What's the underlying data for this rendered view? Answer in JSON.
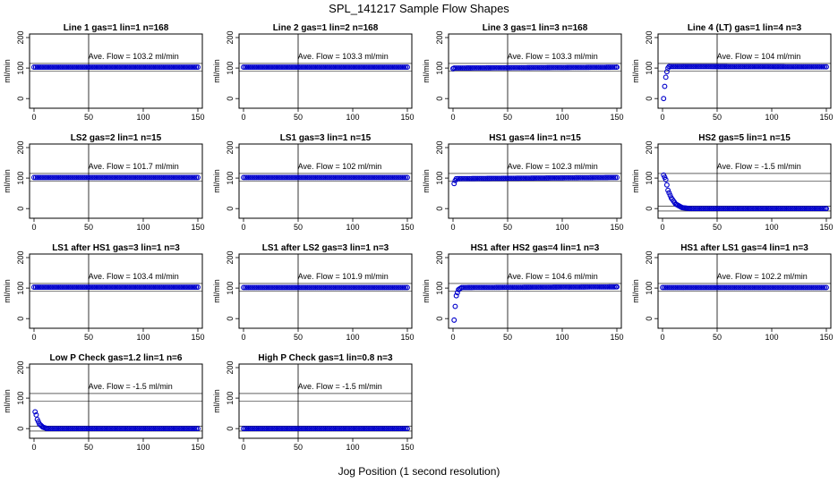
{
  "figure": {
    "title": "SPL_141217  Sample Flow Shapes",
    "xlabel": "Jog Position (1 second resolution)"
  },
  "colors": {
    "points": "#0000cc",
    "axes": "#000000",
    "refline": "#000000"
  },
  "chart_data": [
    {
      "type": "scatter",
      "title": "Line 1 gas=1 lin=1 n=168",
      "ylabel": "ml/min",
      "annotation": "Ave. Flow =  103.2  ml/min",
      "xlim": [
        0,
        150
      ],
      "ylim": [
        -20,
        200
      ],
      "xticks": [
        0,
        50,
        100,
        150
      ],
      "yticks": [
        0,
        100,
        200
      ],
      "shape": "flat",
      "level": 103,
      "points": [
        [
          0,
          103
        ],
        [
          150,
          103
        ]
      ]
    },
    {
      "type": "scatter",
      "title": "Line 2 gas=1 lin=2 n=168",
      "ylabel": "ml/min",
      "annotation": "Ave. Flow =  103.3  ml/min",
      "xlim": [
        0,
        150
      ],
      "ylim": [
        -20,
        200
      ],
      "xticks": [
        0,
        50,
        100,
        150
      ],
      "yticks": [
        0,
        100,
        200
      ],
      "shape": "flat",
      "level": 103,
      "points": [
        [
          0,
          103
        ],
        [
          150,
          103
        ]
      ]
    },
    {
      "type": "scatter",
      "title": "Line 3 gas=1 lin=3 n=168",
      "ylabel": "ml/min",
      "annotation": "Ave. Flow =  103.3  ml/min",
      "xlim": [
        0,
        150
      ],
      "ylim": [
        -20,
        200
      ],
      "xticks": [
        0,
        50,
        100,
        150
      ],
      "yticks": [
        0,
        100,
        200
      ],
      "shape": "flat",
      "level": 103,
      "points": [
        [
          0,
          98
        ],
        [
          1,
          100
        ],
        [
          150,
          103
        ]
      ]
    },
    {
      "type": "scatter",
      "title": "Line 4 (LT) gas=1 lin=4 n=3",
      "ylabel": "ml/min",
      "annotation": "Ave. Flow =  104  ml/min",
      "xlim": [
        0,
        150
      ],
      "ylim": [
        -20,
        200
      ],
      "xticks": [
        0,
        50,
        100,
        150
      ],
      "yticks": [
        0,
        100,
        200
      ],
      "shape": "rise",
      "level": 104,
      "points": [
        [
          1,
          0
        ],
        [
          2,
          40
        ],
        [
          3,
          70
        ],
        [
          4,
          88
        ],
        [
          5,
          100
        ],
        [
          6,
          105
        ],
        [
          150,
          104
        ]
      ]
    },
    {
      "type": "scatter",
      "title": "LS2 gas=2 lin=1 n=15",
      "ylabel": "ml/min",
      "annotation": "Ave. Flow =  101.7  ml/min",
      "xlim": [
        0,
        150
      ],
      "ylim": [
        -20,
        200
      ],
      "xticks": [
        0,
        50,
        100,
        150
      ],
      "yticks": [
        0,
        100,
        200
      ],
      "shape": "flat",
      "level": 102,
      "points": [
        [
          0,
          102
        ],
        [
          150,
          102
        ]
      ]
    },
    {
      "type": "scatter",
      "title": "LS1 gas=3 lin=1 n=15",
      "ylabel": "ml/min",
      "annotation": "Ave. Flow =  102  ml/min",
      "xlim": [
        0,
        150
      ],
      "ylim": [
        -20,
        200
      ],
      "xticks": [
        0,
        50,
        100,
        150
      ],
      "yticks": [
        0,
        100,
        200
      ],
      "shape": "flat",
      "level": 102,
      "points": [
        [
          0,
          102
        ],
        [
          150,
          102
        ]
      ]
    },
    {
      "type": "scatter",
      "title": "HS1 gas=4 lin=1 n=15",
      "ylabel": "ml/min",
      "annotation": "Ave. Flow =  102.3  ml/min",
      "xlim": [
        0,
        150
      ],
      "ylim": [
        -20,
        200
      ],
      "xticks": [
        0,
        50,
        100,
        150
      ],
      "yticks": [
        0,
        100,
        200
      ],
      "shape": "rise",
      "level": 102,
      "points": [
        [
          1,
          82
        ],
        [
          2,
          92
        ],
        [
          3,
          98
        ],
        [
          150,
          102
        ]
      ]
    },
    {
      "type": "scatter",
      "title": "HS2 gas=5 lin=1 n=15",
      "ylabel": "ml/min",
      "annotation": "Ave. Flow =  -1.5  ml/min",
      "xlim": [
        0,
        150
      ],
      "ylim": [
        -20,
        200
      ],
      "xticks": [
        0,
        50,
        100,
        150
      ],
      "yticks": [
        0,
        100,
        200
      ],
      "shape": "decay",
      "level": 0,
      "points": [
        [
          1,
          110
        ],
        [
          3,
          95
        ],
        [
          5,
          60
        ],
        [
          8,
          35
        ],
        [
          12,
          15
        ],
        [
          18,
          3
        ],
        [
          25,
          0
        ],
        [
          150,
          0
        ]
      ]
    },
    {
      "type": "scatter",
      "title": "LS1 after HS1 gas=3 lin=1 n=3",
      "ylabel": "ml/min",
      "annotation": "Ave. Flow =  103.4  ml/min",
      "xlim": [
        0,
        150
      ],
      "ylim": [
        -20,
        200
      ],
      "xticks": [
        0,
        50,
        100,
        150
      ],
      "yticks": [
        0,
        100,
        200
      ],
      "shape": "flat",
      "level": 103,
      "points": [
        [
          0,
          103
        ],
        [
          150,
          103
        ]
      ]
    },
    {
      "type": "scatter",
      "title": "LS1 after LS2 gas=3 lin=1 n=3",
      "ylabel": "ml/min",
      "annotation": "Ave. Flow =  101.9  ml/min",
      "xlim": [
        0,
        150
      ],
      "ylim": [
        -20,
        200
      ],
      "xticks": [
        0,
        50,
        100,
        150
      ],
      "yticks": [
        0,
        100,
        200
      ],
      "shape": "flat",
      "level": 102,
      "points": [
        [
          0,
          102
        ],
        [
          150,
          102
        ]
      ]
    },
    {
      "type": "scatter",
      "title": "HS1 after HS2 gas=4 lin=1 n=3",
      "ylabel": "ml/min",
      "annotation": "Ave. Flow =  104.6  ml/min",
      "xlim": [
        0,
        150
      ],
      "ylim": [
        -20,
        200
      ],
      "xticks": [
        0,
        50,
        100,
        150
      ],
      "yticks": [
        0,
        100,
        200
      ],
      "shape": "rise",
      "level": 104,
      "points": [
        [
          1,
          -5
        ],
        [
          2,
          40
        ],
        [
          3,
          75
        ],
        [
          5,
          95
        ],
        [
          8,
          102
        ],
        [
          150,
          104
        ]
      ]
    },
    {
      "type": "scatter",
      "title": "HS1 after LS1 gas=4 lin=1 n=3",
      "ylabel": "ml/min",
      "annotation": "Ave. Flow =  102.2  ml/min",
      "xlim": [
        0,
        150
      ],
      "ylim": [
        -20,
        200
      ],
      "xticks": [
        0,
        50,
        100,
        150
      ],
      "yticks": [
        0,
        100,
        200
      ],
      "shape": "flat",
      "level": 102,
      "points": [
        [
          0,
          102
        ],
        [
          150,
          102
        ]
      ]
    },
    {
      "type": "scatter",
      "title": "Low P Check gas=1.2 lin=1 n=6",
      "ylabel": "ml/min",
      "annotation": "Ave. Flow =  -1.5  ml/min",
      "xlim": [
        0,
        150
      ],
      "ylim": [
        -20,
        200
      ],
      "xticks": [
        0,
        50,
        100,
        150
      ],
      "yticks": [
        0,
        100,
        200
      ],
      "shape": "decay",
      "level": 0,
      "points": [
        [
          1,
          55
        ],
        [
          2,
          45
        ],
        [
          3,
          30
        ],
        [
          5,
          15
        ],
        [
          8,
          5
        ],
        [
          12,
          0
        ],
        [
          150,
          0
        ]
      ]
    },
    {
      "type": "scatter",
      "title": "High P Check gas=1 lin=0.8 n=3",
      "ylabel": "ml/min",
      "annotation": "Ave. Flow =  -1.5  ml/min",
      "xlim": [
        0,
        150
      ],
      "ylim": [
        -20,
        200
      ],
      "xticks": [
        0,
        50,
        100,
        150
      ],
      "yticks": [
        0,
        100,
        200
      ],
      "shape": "flat",
      "level": 0,
      "points": [
        [
          0,
          0
        ],
        [
          150,
          0
        ]
      ]
    }
  ]
}
